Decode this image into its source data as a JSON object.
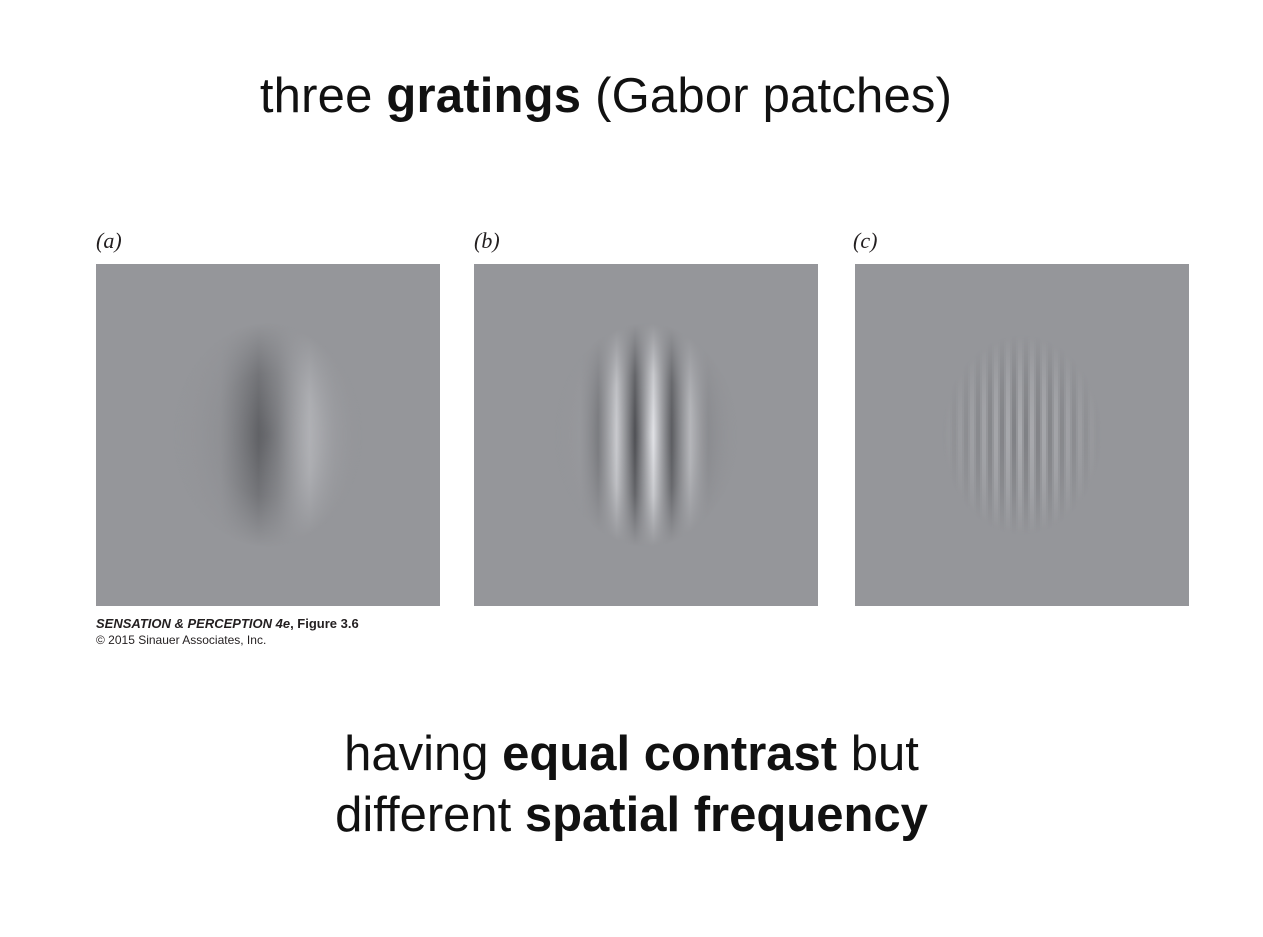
{
  "title": {
    "pre": "three ",
    "bold": "gratings",
    "post": " (Gabor patches)"
  },
  "figure": {
    "background_color": "#95969a",
    "panels": [
      {
        "label": "(a)",
        "spatial_frequency": "low"
      },
      {
        "label": "(b)",
        "spatial_frequency": "medium"
      },
      {
        "label": "(c)",
        "spatial_frequency": "high"
      }
    ],
    "credit": {
      "book": "SENSATION & PERCEPTION 4e",
      "figure": ", Figure 3.6",
      "copyright": "© 2015 Sinauer Associates, Inc."
    }
  },
  "subtitle": {
    "line1_pre": "having ",
    "line1_bold": "equal contrast",
    "line1_post": " but",
    "line2_pre": "different ",
    "line2_bold": "spatial frequency"
  }
}
